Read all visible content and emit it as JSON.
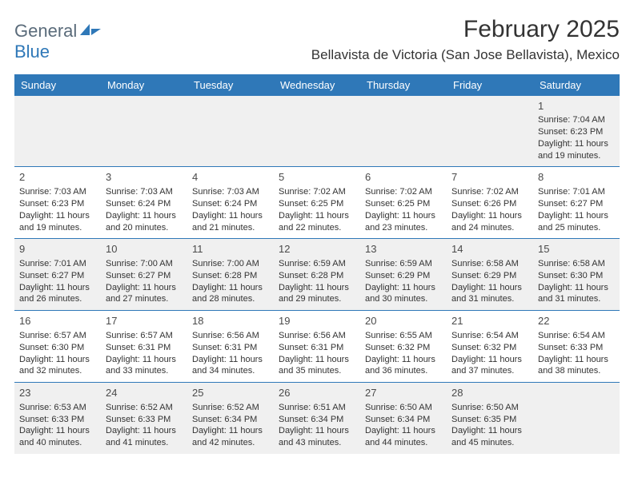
{
  "logo": {
    "general": "General",
    "blue": "Blue"
  },
  "title": "February 2025",
  "location": "Bellavista de Victoria (San Jose Bellavista), Mexico",
  "colors": {
    "brand": "#2f78b8",
    "text": "#333333",
    "altRow": "#f0f0f0"
  },
  "dayHeaders": [
    "Sunday",
    "Monday",
    "Tuesday",
    "Wednesday",
    "Thursday",
    "Friday",
    "Saturday"
  ],
  "weeks": [
    [
      null,
      null,
      null,
      null,
      null,
      null,
      {
        "n": "1",
        "sr": "Sunrise: 7:04 AM",
        "ss": "Sunset: 6:23 PM",
        "dl": "Daylight: 11 hours and 19 minutes."
      }
    ],
    [
      {
        "n": "2",
        "sr": "Sunrise: 7:03 AM",
        "ss": "Sunset: 6:23 PM",
        "dl": "Daylight: 11 hours and 19 minutes."
      },
      {
        "n": "3",
        "sr": "Sunrise: 7:03 AM",
        "ss": "Sunset: 6:24 PM",
        "dl": "Daylight: 11 hours and 20 minutes."
      },
      {
        "n": "4",
        "sr": "Sunrise: 7:03 AM",
        "ss": "Sunset: 6:24 PM",
        "dl": "Daylight: 11 hours and 21 minutes."
      },
      {
        "n": "5",
        "sr": "Sunrise: 7:02 AM",
        "ss": "Sunset: 6:25 PM",
        "dl": "Daylight: 11 hours and 22 minutes."
      },
      {
        "n": "6",
        "sr": "Sunrise: 7:02 AM",
        "ss": "Sunset: 6:25 PM",
        "dl": "Daylight: 11 hours and 23 minutes."
      },
      {
        "n": "7",
        "sr": "Sunrise: 7:02 AM",
        "ss": "Sunset: 6:26 PM",
        "dl": "Daylight: 11 hours and 24 minutes."
      },
      {
        "n": "8",
        "sr": "Sunrise: 7:01 AM",
        "ss": "Sunset: 6:27 PM",
        "dl": "Daylight: 11 hours and 25 minutes."
      }
    ],
    [
      {
        "n": "9",
        "sr": "Sunrise: 7:01 AM",
        "ss": "Sunset: 6:27 PM",
        "dl": "Daylight: 11 hours and 26 minutes."
      },
      {
        "n": "10",
        "sr": "Sunrise: 7:00 AM",
        "ss": "Sunset: 6:27 PM",
        "dl": "Daylight: 11 hours and 27 minutes."
      },
      {
        "n": "11",
        "sr": "Sunrise: 7:00 AM",
        "ss": "Sunset: 6:28 PM",
        "dl": "Daylight: 11 hours and 28 minutes."
      },
      {
        "n": "12",
        "sr": "Sunrise: 6:59 AM",
        "ss": "Sunset: 6:28 PM",
        "dl": "Daylight: 11 hours and 29 minutes."
      },
      {
        "n": "13",
        "sr": "Sunrise: 6:59 AM",
        "ss": "Sunset: 6:29 PM",
        "dl": "Daylight: 11 hours and 30 minutes."
      },
      {
        "n": "14",
        "sr": "Sunrise: 6:58 AM",
        "ss": "Sunset: 6:29 PM",
        "dl": "Daylight: 11 hours and 31 minutes."
      },
      {
        "n": "15",
        "sr": "Sunrise: 6:58 AM",
        "ss": "Sunset: 6:30 PM",
        "dl": "Daylight: 11 hours and 31 minutes."
      }
    ],
    [
      {
        "n": "16",
        "sr": "Sunrise: 6:57 AM",
        "ss": "Sunset: 6:30 PM",
        "dl": "Daylight: 11 hours and 32 minutes."
      },
      {
        "n": "17",
        "sr": "Sunrise: 6:57 AM",
        "ss": "Sunset: 6:31 PM",
        "dl": "Daylight: 11 hours and 33 minutes."
      },
      {
        "n": "18",
        "sr": "Sunrise: 6:56 AM",
        "ss": "Sunset: 6:31 PM",
        "dl": "Daylight: 11 hours and 34 minutes."
      },
      {
        "n": "19",
        "sr": "Sunrise: 6:56 AM",
        "ss": "Sunset: 6:31 PM",
        "dl": "Daylight: 11 hours and 35 minutes."
      },
      {
        "n": "20",
        "sr": "Sunrise: 6:55 AM",
        "ss": "Sunset: 6:32 PM",
        "dl": "Daylight: 11 hours and 36 minutes."
      },
      {
        "n": "21",
        "sr": "Sunrise: 6:54 AM",
        "ss": "Sunset: 6:32 PM",
        "dl": "Daylight: 11 hours and 37 minutes."
      },
      {
        "n": "22",
        "sr": "Sunrise: 6:54 AM",
        "ss": "Sunset: 6:33 PM",
        "dl": "Daylight: 11 hours and 38 minutes."
      }
    ],
    [
      {
        "n": "23",
        "sr": "Sunrise: 6:53 AM",
        "ss": "Sunset: 6:33 PM",
        "dl": "Daylight: 11 hours and 40 minutes."
      },
      {
        "n": "24",
        "sr": "Sunrise: 6:52 AM",
        "ss": "Sunset: 6:33 PM",
        "dl": "Daylight: 11 hours and 41 minutes."
      },
      {
        "n": "25",
        "sr": "Sunrise: 6:52 AM",
        "ss": "Sunset: 6:34 PM",
        "dl": "Daylight: 11 hours and 42 minutes."
      },
      {
        "n": "26",
        "sr": "Sunrise: 6:51 AM",
        "ss": "Sunset: 6:34 PM",
        "dl": "Daylight: 11 hours and 43 minutes."
      },
      {
        "n": "27",
        "sr": "Sunrise: 6:50 AM",
        "ss": "Sunset: 6:34 PM",
        "dl": "Daylight: 11 hours and 44 minutes."
      },
      {
        "n": "28",
        "sr": "Sunrise: 6:50 AM",
        "ss": "Sunset: 6:35 PM",
        "dl": "Daylight: 11 hours and 45 minutes."
      },
      null
    ]
  ]
}
